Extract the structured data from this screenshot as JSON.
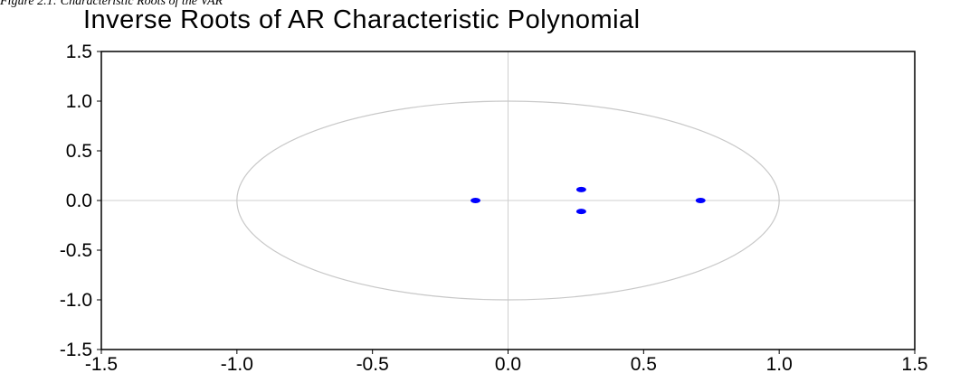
{
  "figure": {
    "caption": "Figure 2.1: Characteristic Roots of the VAR"
  },
  "chart_data": {
    "type": "scatter",
    "title": "Inverse Roots of AR Characteristic Polynomial",
    "xlabel": "",
    "ylabel": "",
    "xlim": [
      -1.5,
      1.5
    ],
    "ylim": [
      -1.5,
      1.5
    ],
    "x_ticks": [
      "-1.5",
      "-1.0",
      "-0.5",
      "0.0",
      "0.5",
      "1.0",
      "1.5"
    ],
    "y_ticks": [
      "1.5",
      "1.0",
      "0.5",
      "0.0",
      "-0.5",
      "-1.0",
      "-1.5"
    ],
    "unit_circle": true,
    "grid": false,
    "points": [
      {
        "x": -0.12,
        "y": 0.0
      },
      {
        "x": 0.27,
        "y": 0.11
      },
      {
        "x": 0.27,
        "y": -0.11
      },
      {
        "x": 0.71,
        "y": 0.0
      }
    ],
    "colors": {
      "points": "#0000ff",
      "circle": "#c8c8c8",
      "axes_lines": "#cfcfcf",
      "frame": "#000000"
    }
  }
}
